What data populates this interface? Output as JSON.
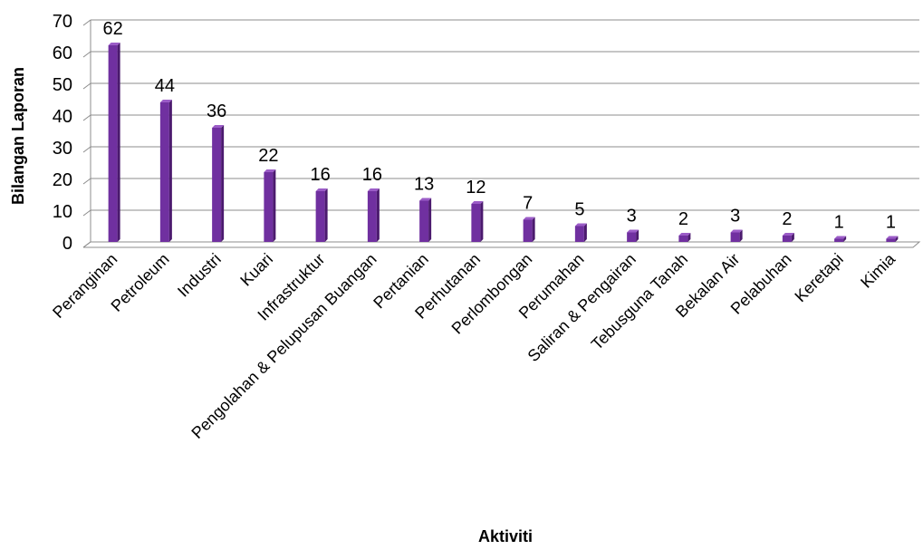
{
  "chart_data": {
    "type": "bar",
    "title": "",
    "xlabel": "Aktiviti",
    "ylabel": "Bilangan Laporan",
    "ylim": [
      0,
      70
    ],
    "ytick_step": 10,
    "grid": true,
    "legend": "none",
    "bar_color": "#7030a0",
    "categories": [
      "Peranginan",
      "Petroleum",
      "Industri",
      "Kuari",
      "Infrastruktur",
      "Pengolahan & Pelupusan Buangan",
      "Pertanian",
      "Perhutanan",
      "Perlombongan",
      "Perumahan",
      "Saliran & Pengairan",
      "Tebusguna Tanah",
      "Bekalan Air",
      "Pelabuhan",
      "Keretapi",
      "Kimia"
    ],
    "values": [
      62,
      44,
      36,
      22,
      16,
      16,
      13,
      12,
      7,
      5,
      3,
      2,
      3,
      2,
      1,
      1
    ]
  }
}
